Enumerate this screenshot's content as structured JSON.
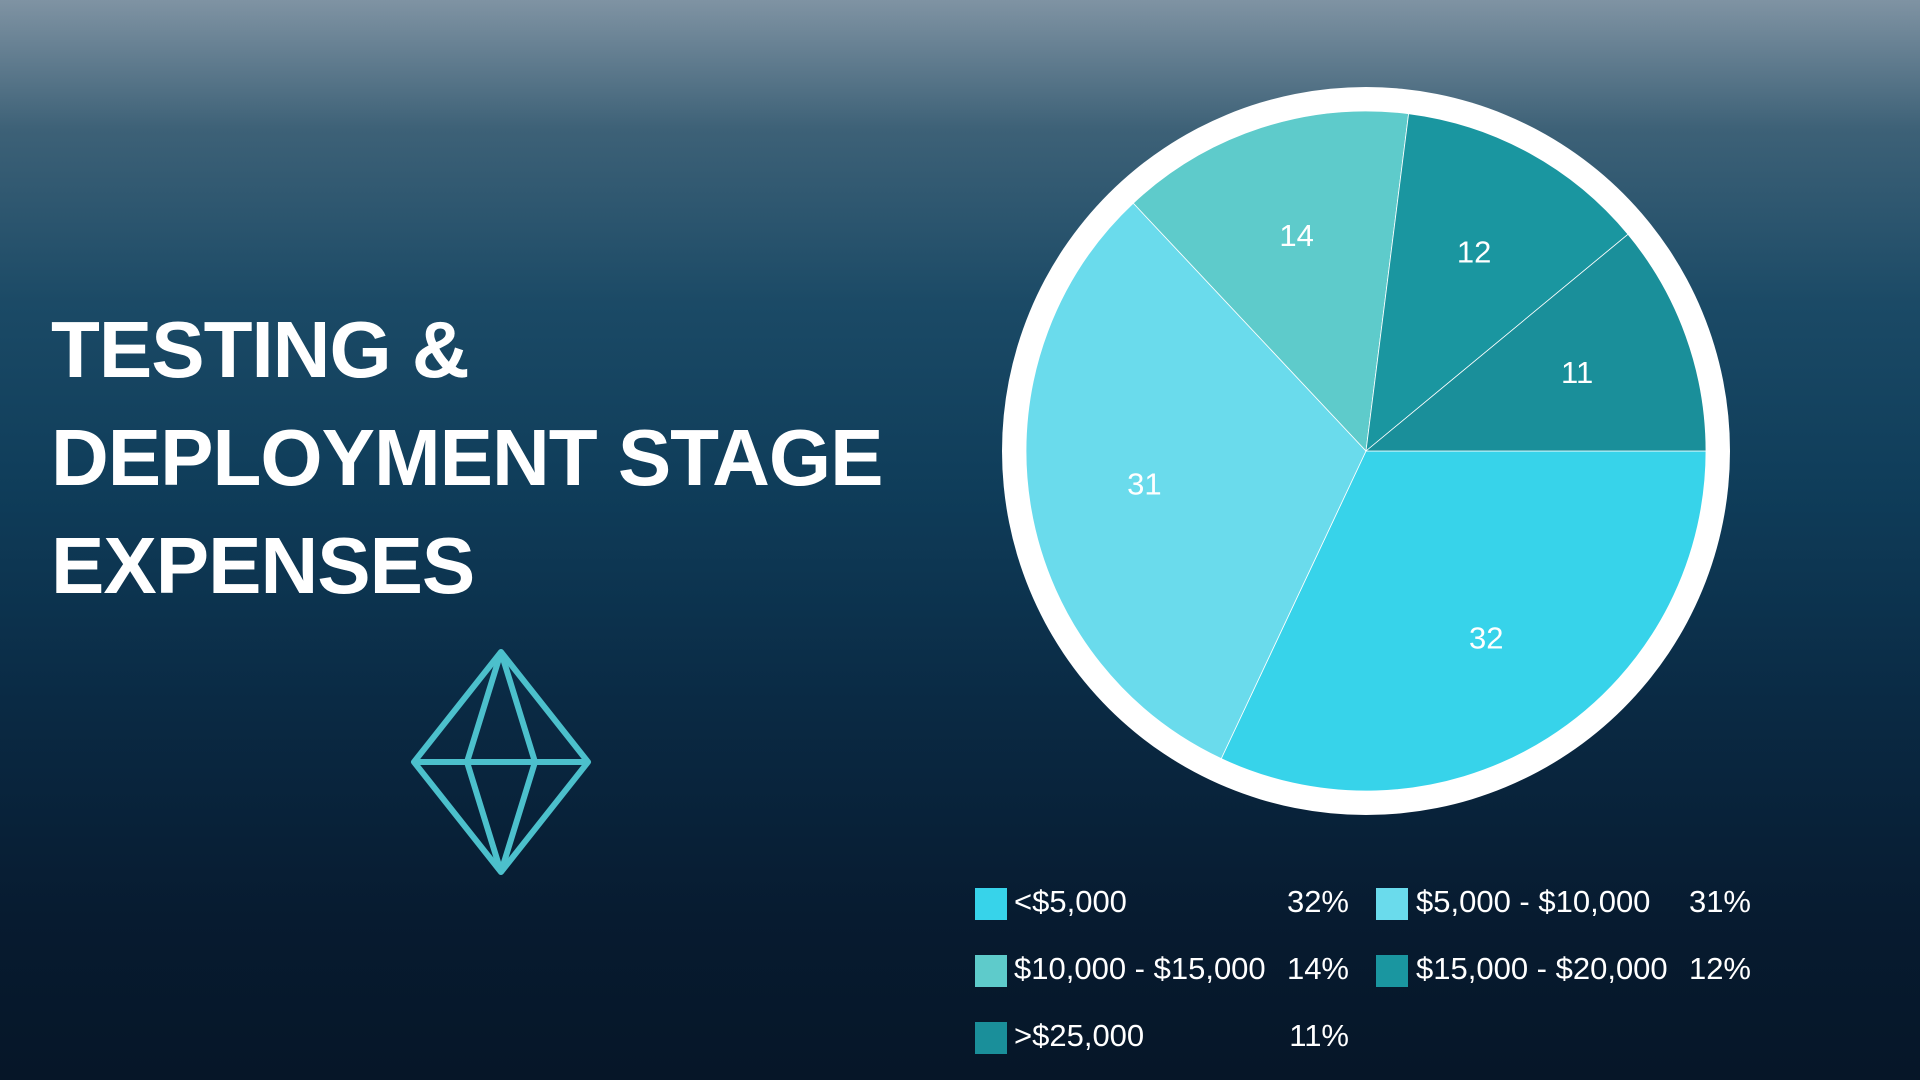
{
  "chart_data": {
    "type": "pie",
    "title": "TESTING & DEPLOYMENT STAGE EXPENSES",
    "categories": [
      "<$5,000",
      "$5,000 - $10,000",
      "$10,000 - $15,000",
      "$15,000 - $20,000",
      ">$25,000"
    ],
    "values": [
      32,
      31,
      14,
      12,
      11
    ],
    "value_labels": [
      "32%",
      "31%",
      "14%",
      "12%",
      "11%"
    ],
    "colors": [
      "#37d3ea",
      "#6adbec",
      "#5ecbcb",
      "#1a96a0",
      "#1a8f9a"
    ]
  }
}
